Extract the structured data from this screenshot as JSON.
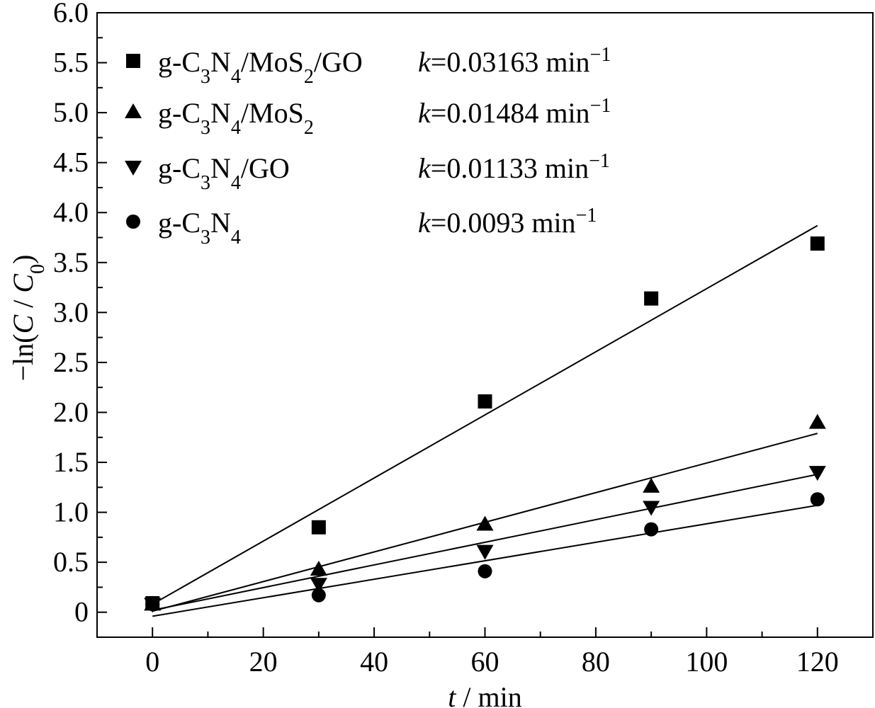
{
  "chart_data": {
    "type": "scatter",
    "xlabel": {
      "italic": "t",
      "rest": " / min"
    },
    "ylabel": {
      "prefix": "−ln(",
      "c1": "C",
      "sep": " / ",
      "c0": "C",
      "c0sub": "0",
      "suffix": ")"
    },
    "xlim": [
      -10,
      130
    ],
    "ylim": [
      -0.25,
      6.0
    ],
    "xticks": [
      0,
      20,
      40,
      60,
      80,
      100,
      120
    ],
    "xtick_labels": [
      "0",
      "20",
      "40",
      "60",
      "80",
      "100",
      "120"
    ],
    "yticks": [
      0,
      0.5,
      1.0,
      1.5,
      2.0,
      2.5,
      3.0,
      3.5,
      4.0,
      4.5,
      5.0,
      5.5,
      6.0
    ],
    "ytick_labels": [
      "0",
      "0.5",
      "1.0",
      "1.5",
      "2.0",
      "2.5",
      "3.0",
      "3.5",
      "4.0",
      "4.5",
      "5.0",
      "5.5",
      "6.0"
    ],
    "grid": false,
    "legend_position": "top-left",
    "series": [
      {
        "name": "g-C3N4/MoS2/GO",
        "label_parts": [
          [
            "g-C",
            ""
          ],
          [
            "3",
            "sub"
          ],
          [
            "N",
            ""
          ],
          [
            "4",
            "sub"
          ],
          [
            "/MoS",
            ""
          ],
          [
            "2",
            "sub"
          ],
          [
            "/GO",
            ""
          ]
        ],
        "marker": "square",
        "k_text": "=0.03163 min",
        "x": [
          0,
          30,
          60,
          90,
          120
        ],
        "y": [
          0.09,
          0.85,
          2.11,
          3.14,
          3.69
        ],
        "fit_x": [
          0,
          120
        ],
        "fit_y": [
          0.08,
          3.87
        ]
      },
      {
        "name": "g-C3N4/MoS2",
        "label_parts": [
          [
            "g-C",
            ""
          ],
          [
            "3",
            "sub"
          ],
          [
            "N",
            ""
          ],
          [
            "4",
            "sub"
          ],
          [
            "/MoS",
            ""
          ],
          [
            "2",
            "sub"
          ]
        ],
        "marker": "triangle-up",
        "k_text": "=0.01484 min",
        "x": [
          0,
          30,
          60,
          90,
          120
        ],
        "y": [
          0.08,
          0.43,
          0.88,
          1.26,
          1.9
        ],
        "fit_x": [
          0,
          120
        ],
        "fit_y": [
          0.01,
          1.79
        ]
      },
      {
        "name": "g-C3N4/GO",
        "label_parts": [
          [
            "g-C",
            ""
          ],
          [
            "3",
            "sub"
          ],
          [
            "N",
            ""
          ],
          [
            "4",
            "sub"
          ],
          [
            "/GO",
            ""
          ]
        ],
        "marker": "triangle-down",
        "k_text": "=0.01133 min",
        "x": [
          0,
          30,
          60,
          90,
          120
        ],
        "y": [
          0.08,
          0.28,
          0.61,
          1.05,
          1.4
        ],
        "fit_x": [
          0,
          120
        ],
        "fit_y": [
          0.02,
          1.38
        ]
      },
      {
        "name": "g-C3N4",
        "label_parts": [
          [
            "g-C",
            ""
          ],
          [
            "3",
            "sub"
          ],
          [
            "N",
            ""
          ],
          [
            "4",
            "sub"
          ]
        ],
        "marker": "circle",
        "k_text": "=0.0093 min",
        "x": [
          0,
          30,
          60,
          90,
          120
        ],
        "y": [
          0.08,
          0.17,
          0.41,
          0.83,
          1.13
        ],
        "fit_x": [
          0,
          120
        ],
        "fit_y": [
          -0.04,
          1.07
        ]
      }
    ],
    "k_symbol": "k",
    "unit_sup": "−1"
  }
}
